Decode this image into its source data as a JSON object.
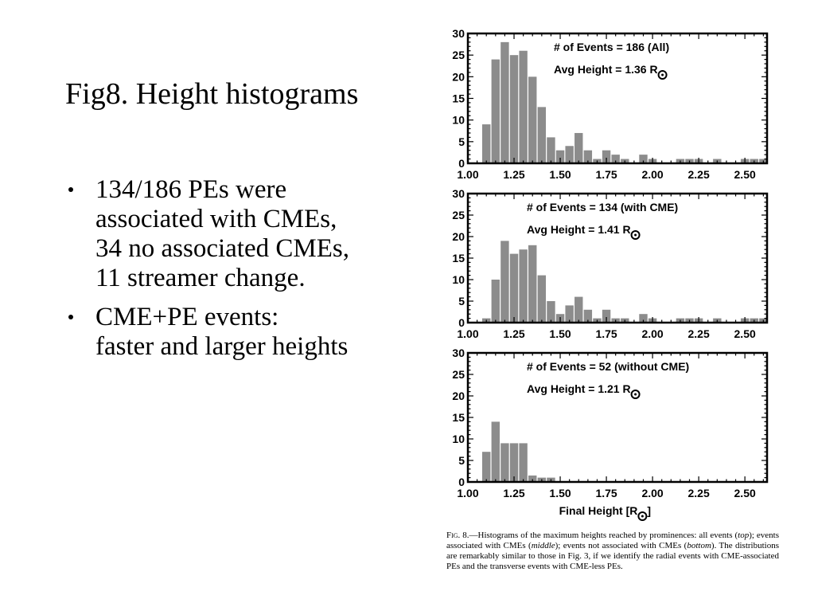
{
  "slide": {
    "title": "Fig8. Height histograms",
    "bullets": [
      {
        "lines": [
          "134/186 PEs were",
          "associated with CMEs,",
          "34 no associated CMEs,",
          "11 streamer change."
        ]
      },
      {
        "lines": [
          "CME+PE events:",
          "faster and larger heights"
        ]
      }
    ]
  },
  "caption": {
    "label": "Fig. 8.",
    "parts": [
      {
        "text": "—Histograms of the maximum heights reached by prominences: all events ("
      },
      {
        "text": "top",
        "italic": true
      },
      {
        "text": "); events associated with CMEs ("
      },
      {
        "text": "middle",
        "italic": true
      },
      {
        "text": "); events not associated with CMEs ("
      },
      {
        "text": "bottom",
        "italic": true
      },
      {
        "text": "). The distributions are remarkably similar to those in Fig. 3, if we identify the radial events with CME-associated PEs and the transverse events with CME-less PEs."
      }
    ]
  },
  "chart_data": [
    {
      "type": "bar",
      "bin_width": 0.05,
      "x": [
        1.1,
        1.15,
        1.2,
        1.25,
        1.3,
        1.35,
        1.4,
        1.45,
        1.5,
        1.55,
        1.6,
        1.65,
        1.7,
        1.75,
        1.8,
        1.85,
        1.9,
        1.95,
        2.0,
        2.05,
        2.1,
        2.15,
        2.2,
        2.25,
        2.3,
        2.35,
        2.4,
        2.45,
        2.5,
        2.55,
        2.6
      ],
      "values": [
        9,
        24,
        28,
        25,
        26,
        20,
        13,
        6,
        3,
        4,
        7,
        3,
        1,
        3,
        2,
        1,
        0,
        2,
        1,
        0,
        0,
        1,
        1,
        1,
        0,
        1,
        0,
        0,
        1,
        1,
        1
      ],
      "annotation": "# of Events = 186 (All)",
      "avg_label": "Avg Height = 1.36 R",
      "xlim": [
        1.0,
        2.62
      ],
      "ylim": [
        0,
        30
      ],
      "xticks": [
        "1.00",
        "1.25",
        "1.50",
        "1.75",
        "2.00",
        "2.25",
        "2.50"
      ],
      "yticks": [
        "0",
        "5",
        "10",
        "15",
        "20",
        "25",
        "30"
      ],
      "xlabel": "",
      "bar_color": "#8c8c8c"
    },
    {
      "type": "bar",
      "bin_width": 0.05,
      "x": [
        1.1,
        1.15,
        1.2,
        1.25,
        1.3,
        1.35,
        1.4,
        1.45,
        1.5,
        1.55,
        1.6,
        1.65,
        1.7,
        1.75,
        1.8,
        1.85,
        1.9,
        1.95,
        2.0,
        2.05,
        2.1,
        2.15,
        2.2,
        2.25,
        2.3,
        2.35,
        2.4,
        2.45,
        2.5,
        2.55,
        2.6
      ],
      "values": [
        1,
        10,
        19,
        16,
        17,
        18,
        11,
        5,
        2,
        4,
        6,
        3,
        1,
        3,
        1,
        1,
        0,
        2,
        1,
        0,
        0,
        1,
        1,
        1,
        0,
        1,
        0,
        0,
        1,
        1,
        1
      ],
      "annotation": "# of Events = 134 (with CME)",
      "avg_label": "Avg Height = 1.41 R",
      "xlim": [
        1.0,
        2.62
      ],
      "ylim": [
        0,
        30
      ],
      "xticks": [
        "1.00",
        "1.25",
        "1.50",
        "1.75",
        "2.00",
        "2.25",
        "2.50"
      ],
      "yticks": [
        "0",
        "5",
        "10",
        "15",
        "20",
        "25",
        "30"
      ],
      "xlabel": "",
      "bar_color": "#8c8c8c"
    },
    {
      "type": "bar",
      "bin_width": 0.05,
      "x": [
        1.1,
        1.15,
        1.2,
        1.25,
        1.3,
        1.35,
        1.4,
        1.45
      ],
      "values": [
        7,
        14,
        9,
        9,
        9,
        1.5,
        1,
        1
      ],
      "annotation": "# of Events = 52 (without CME)",
      "avg_label": "Avg Height = 1.21 R",
      "xlim": [
        1.0,
        2.62
      ],
      "ylim": [
        0,
        30
      ],
      "xticks": [
        "1.00",
        "1.25",
        "1.50",
        "1.75",
        "2.00",
        "2.25",
        "2.50"
      ],
      "yticks": [
        "0",
        "5",
        "10",
        "15",
        "20",
        "25",
        "30"
      ],
      "xlabel": "Final Height [R",
      "bar_color": "#8c8c8c"
    }
  ]
}
